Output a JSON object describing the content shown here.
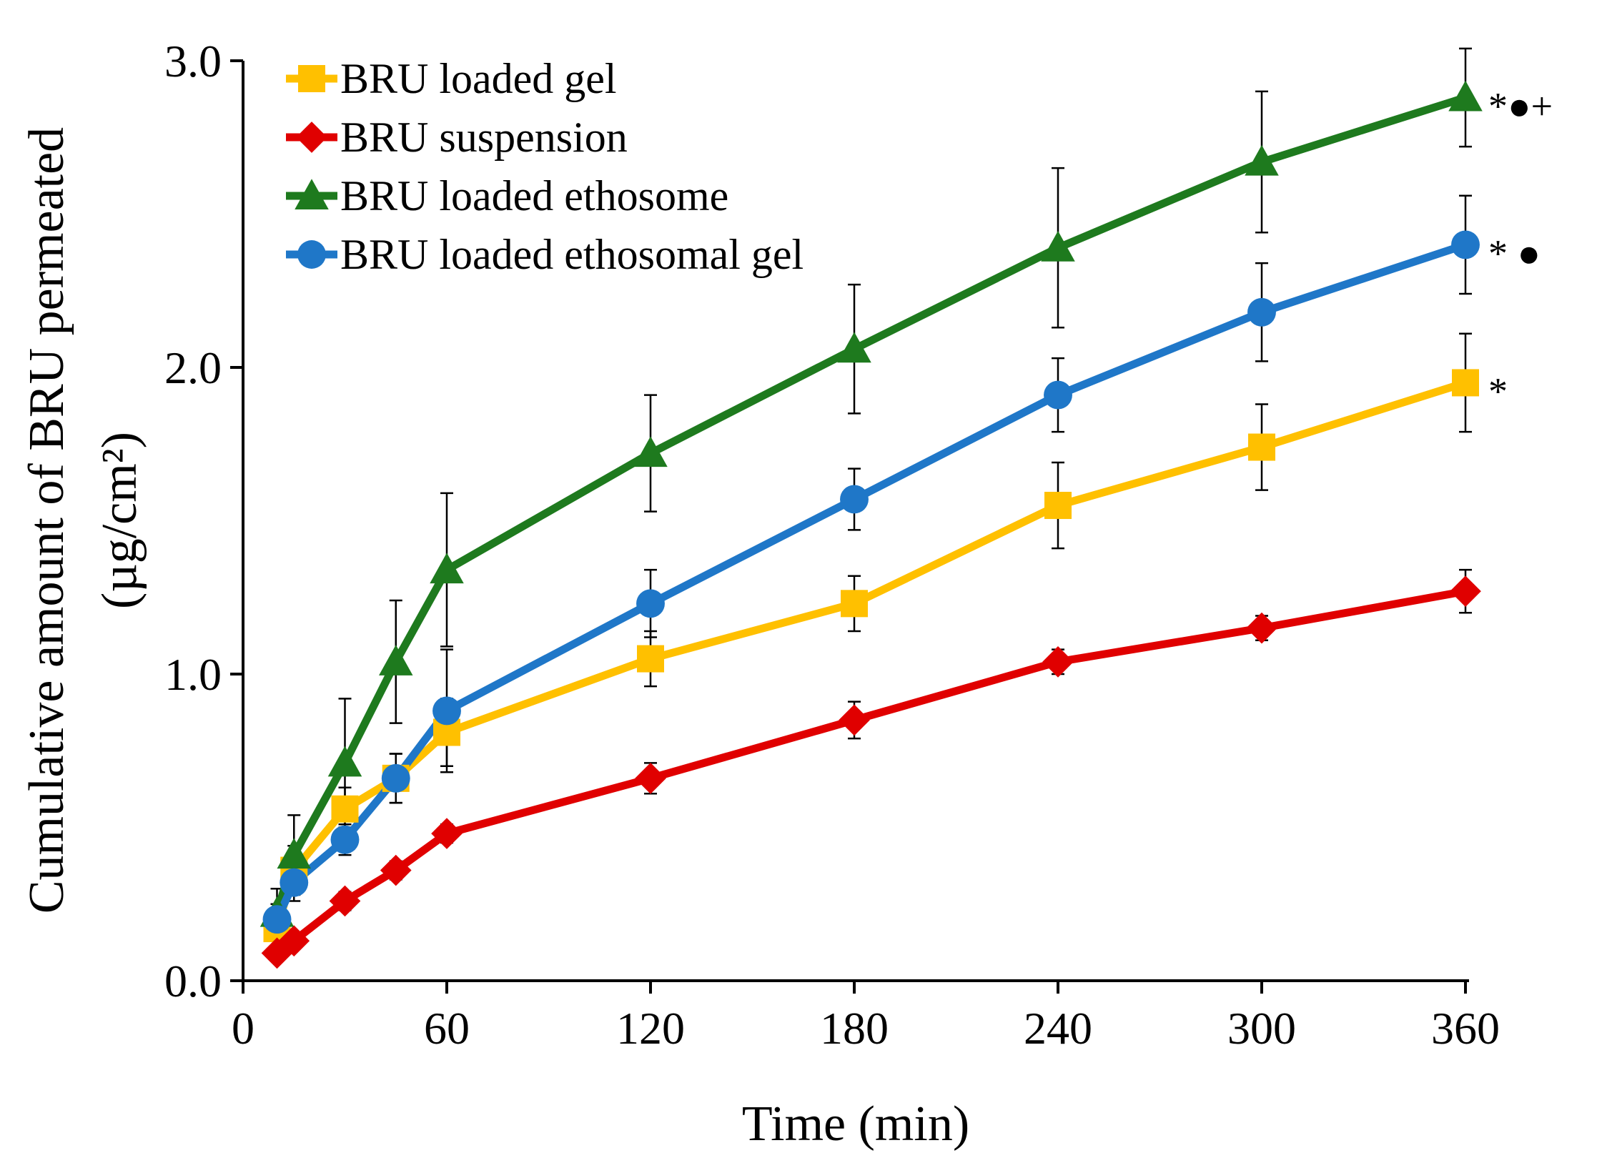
{
  "chart_data": {
    "type": "line",
    "title": "",
    "xlabel": "Time (min)",
    "ylabel": "Cumulative amount of BRU permeated",
    "ylabel_unit": "(µg/cm²)",
    "xlim": [
      0,
      360
    ],
    "ylim": [
      0,
      3.0
    ],
    "xticks": [
      "0",
      "60",
      "120",
      "180",
      "240",
      "300",
      "360"
    ],
    "xtick_values": [
      0,
      60,
      120,
      180,
      240,
      300,
      360
    ],
    "yticks": [
      "0.0",
      "1.0",
      "2.0",
      "3.0"
    ],
    "ytick_values": [
      0,
      1,
      2,
      3
    ],
    "grid": false,
    "legend_position": "top-left",
    "x": [
      10,
      15,
      30,
      45,
      60,
      120,
      180,
      240,
      300,
      360
    ],
    "series": [
      {
        "name": "BRU loaded gel",
        "color": "#FFC000",
        "marker": "square",
        "values": [
          0.17,
          0.36,
          0.56,
          0.66,
          0.81,
          1.05,
          1.23,
          1.55,
          1.74,
          1.95
        ],
        "errors": [
          0.04,
          0.08,
          0.07,
          0.08,
          0.11,
          0.09,
          0.09,
          0.14,
          0.14,
          0.16
        ],
        "annotation": "*"
      },
      {
        "name": "BRU suspension",
        "color": "#E00000",
        "marker": "diamond",
        "values": [
          0.09,
          0.13,
          0.26,
          0.36,
          0.48,
          0.66,
          0.85,
          1.04,
          1.15,
          1.27
        ],
        "errors": [
          0.02,
          0.02,
          0.03,
          0.03,
          0.03,
          0.05,
          0.06,
          0.04,
          0.04,
          0.07
        ],
        "annotation": ""
      },
      {
        "name": "BRU loaded ethosome",
        "color": "#1E7A1E",
        "marker": "triangle",
        "values": [
          0.22,
          0.41,
          0.71,
          1.04,
          1.34,
          1.72,
          2.06,
          2.39,
          2.67,
          2.88
        ],
        "errors": [
          0.08,
          0.13,
          0.21,
          0.2,
          0.25,
          0.19,
          0.21,
          0.26,
          0.23,
          0.16
        ],
        "annotation": "*●+"
      },
      {
        "name": "BRU loaded ethosomal gel",
        "color": "#1F77C8",
        "marker": "circle",
        "values": [
          0.2,
          0.32,
          0.46,
          0.66,
          0.88,
          1.23,
          1.57,
          1.91,
          2.18,
          2.4
        ],
        "errors": [
          0.05,
          0.06,
          0.05,
          0.08,
          0.2,
          0.11,
          0.1,
          0.12,
          0.16,
          0.16
        ],
        "annotation": "* ●"
      }
    ]
  }
}
